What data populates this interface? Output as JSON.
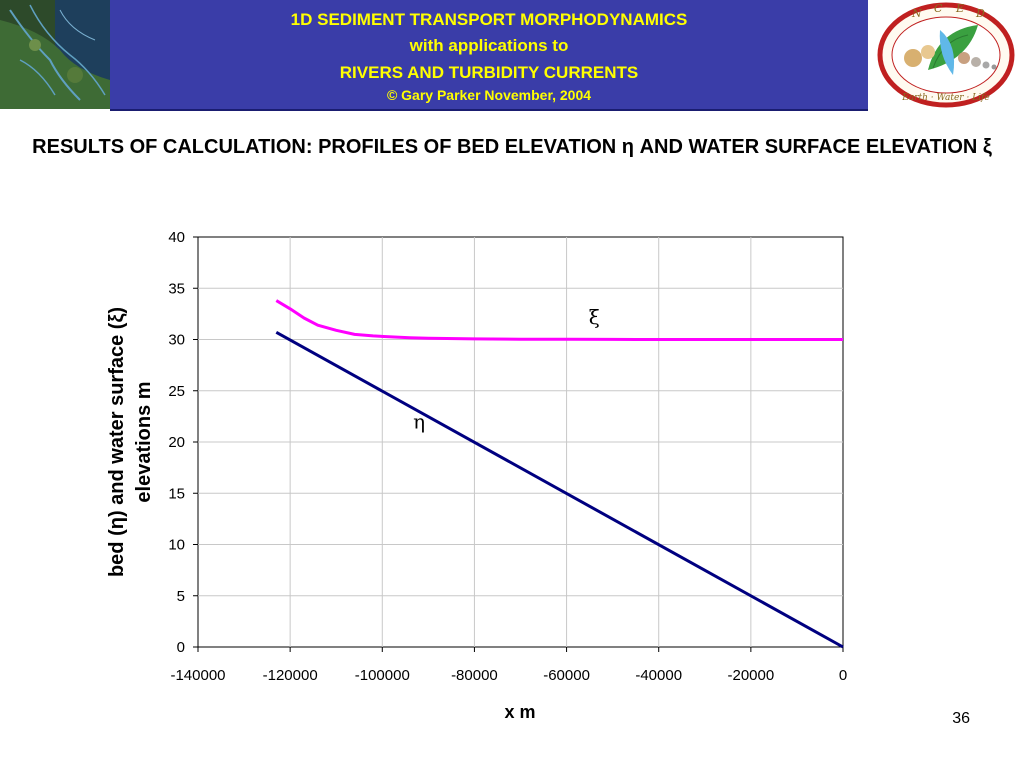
{
  "header": {
    "line1": "1D SEDIMENT TRANSPORT MORPHODYNAMICS",
    "line2": "with applications to",
    "line3": "RIVERS AND TURBIDITY CURRENTS",
    "line4": "© Gary Parker November, 2004",
    "banner_color": "#3a3da8",
    "text_color": "#ffff00",
    "logo_letters": [
      "N",
      "C",
      "E",
      "D"
    ],
    "logo_motto": "Earth · Water · Life"
  },
  "slide": {
    "title": "RESULTS OF CALCULATION: PROFILES OF BED ELEVATION η AND WATER SURFACE ELEVATION ξ",
    "page_number": "36"
  },
  "chart_data": {
    "type": "line",
    "title": "",
    "xlabel": "x m",
    "ylabel_line1": "bed (η) and water surface (ξ)",
    "ylabel_line2": "elevations m",
    "xlim": [
      -140000,
      0
    ],
    "ylim": [
      0,
      40
    ],
    "x_ticks": [
      -140000,
      -120000,
      -100000,
      -80000,
      -60000,
      -40000,
      -20000,
      0
    ],
    "y_ticks": [
      0,
      5,
      10,
      15,
      20,
      25,
      30,
      35,
      40
    ],
    "grid": true,
    "series": [
      {
        "name": "ξ",
        "color": "#ff00ff",
        "label_at": [
          -54000,
          31.5
        ],
        "x": [
          -123000,
          -120000,
          -117000,
          -114000,
          -110000,
          -106000,
          -102000,
          -98000,
          -94000,
          -90000,
          -80000,
          -70000,
          -60000,
          -50000,
          -40000,
          -30000,
          -20000,
          -10000,
          0
        ],
        "y": [
          33.8,
          33.0,
          32.1,
          31.4,
          30.9,
          30.5,
          30.35,
          30.25,
          30.18,
          30.12,
          30.06,
          30.03,
          30.02,
          30.01,
          30.0,
          30.0,
          30.0,
          30.0,
          30.0
        ]
      },
      {
        "name": "η",
        "color": "#000080",
        "label_at": [
          -92000,
          21.3
        ],
        "x": [
          -123000,
          0
        ],
        "y": [
          30.7,
          0
        ]
      }
    ]
  }
}
